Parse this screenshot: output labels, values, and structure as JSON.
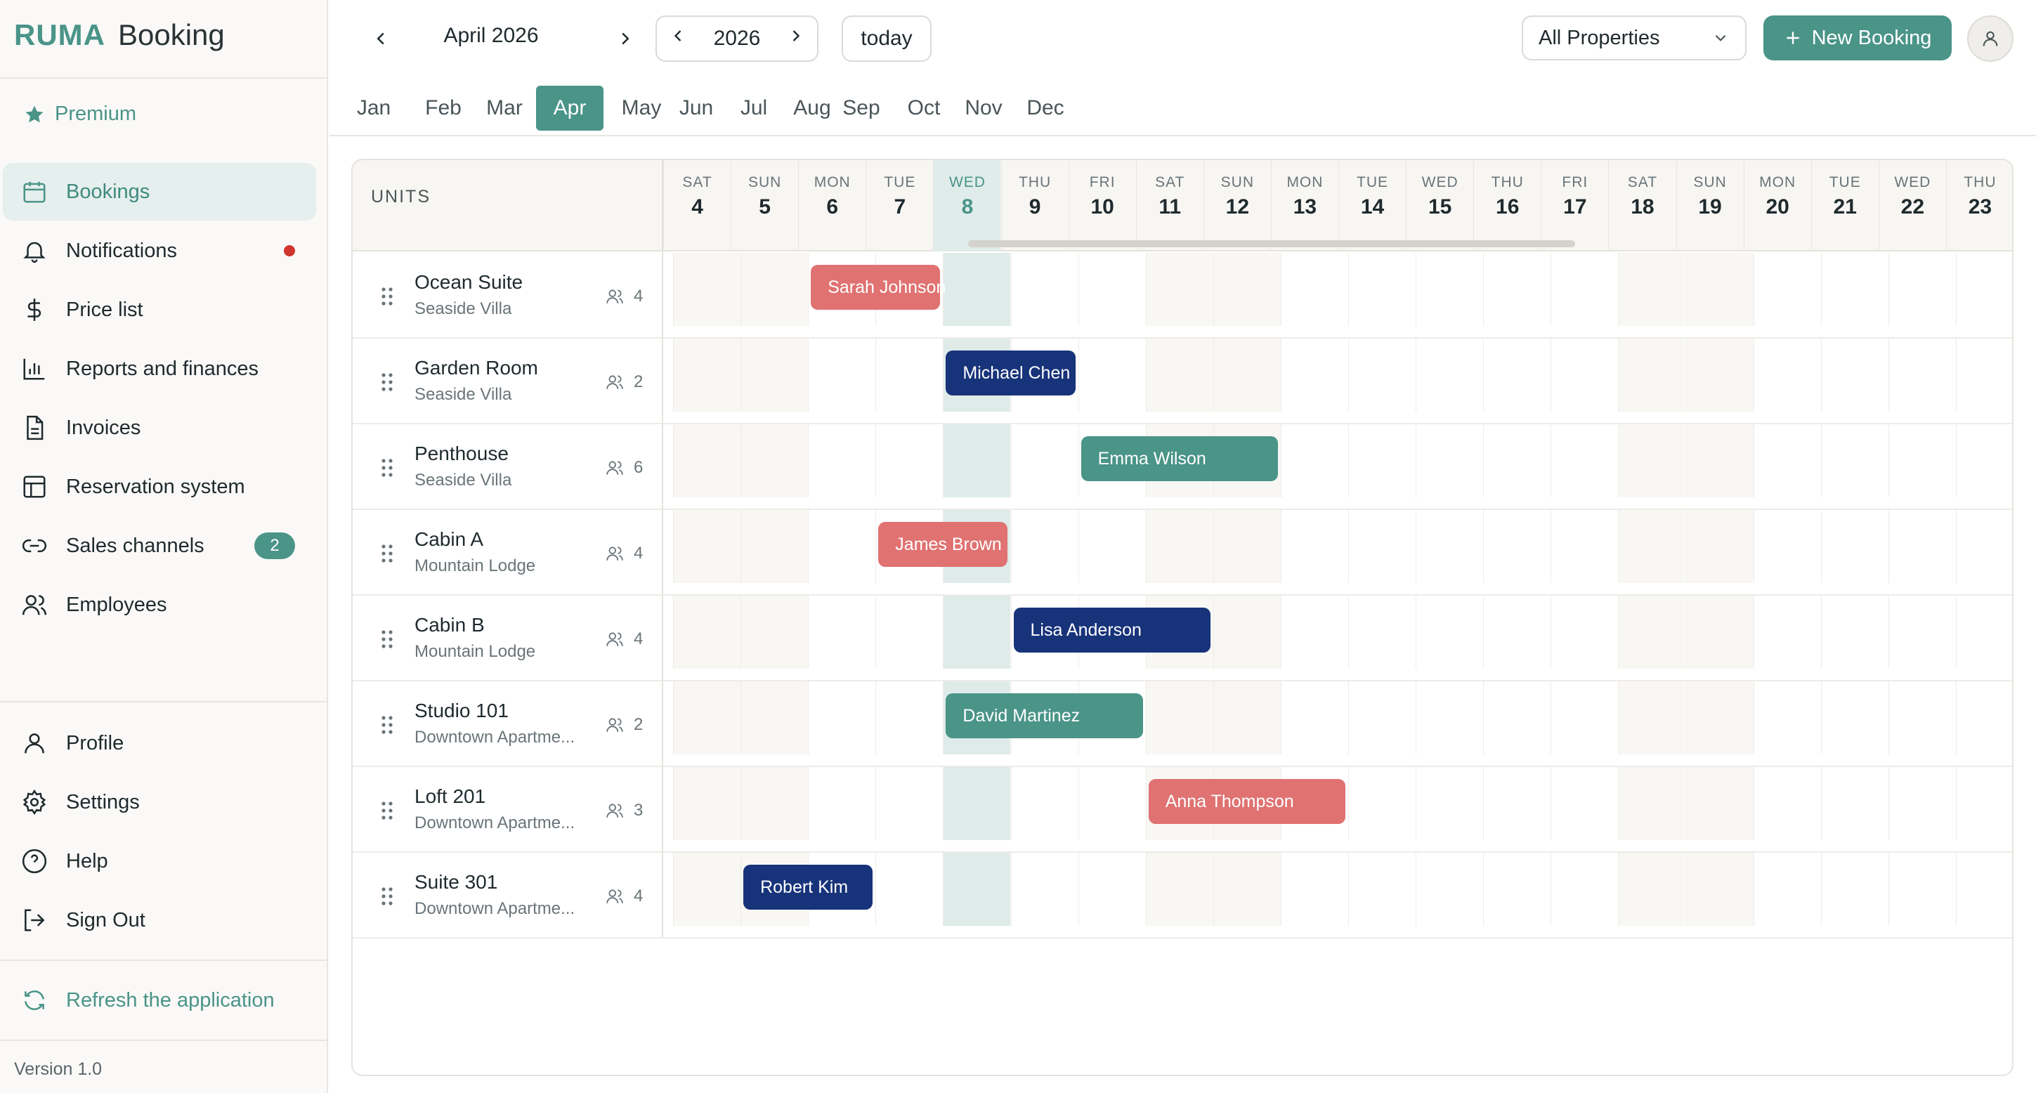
{
  "sidebar": {
    "logo_brand": "RUMA",
    "logo_word": "Booking",
    "premium": "Premium",
    "items": [
      {
        "label": "Bookings",
        "icon": "calendar-icon"
      },
      {
        "label": "Notifications",
        "icon": "bell-icon"
      },
      {
        "label": "Price list",
        "icon": "dollar-icon"
      },
      {
        "label": "Reports and finances",
        "icon": "bar-chart-icon"
      },
      {
        "label": "Invoices",
        "icon": "document-icon"
      },
      {
        "label": "Reservation system",
        "icon": "layout-icon"
      },
      {
        "label": "Sales channels",
        "icon": "link-icon",
        "badge": "2"
      },
      {
        "label": "Employees",
        "icon": "users-icon"
      }
    ],
    "bottom_items": [
      {
        "label": "Profile",
        "icon": "user-icon"
      },
      {
        "label": "Settings",
        "icon": "gear-icon"
      },
      {
        "label": "Help",
        "icon": "help-icon"
      },
      {
        "label": "Sign Out",
        "icon": "sign-out-icon"
      }
    ],
    "refresh": "Refresh the application",
    "version": "Version 1.0"
  },
  "topbar": {
    "month_title": "April 2026",
    "year": "2026",
    "today": "today",
    "property_select": "All Properties",
    "new_booking": "New Booking"
  },
  "months": [
    "Jan",
    "Feb",
    "Mar",
    "Apr",
    "May",
    "Jun",
    "Jul",
    "Aug",
    "Sep",
    "Oct",
    "Nov",
    "Dec"
  ],
  "active_month": "Apr",
  "calendar": {
    "units_header": "UNITS",
    "days": [
      {
        "name": "SAT",
        "num": "4"
      },
      {
        "name": "SUN",
        "num": "5"
      },
      {
        "name": "MON",
        "num": "6"
      },
      {
        "name": "TUE",
        "num": "7"
      },
      {
        "name": "WED",
        "num": "8"
      },
      {
        "name": "THU",
        "num": "9"
      },
      {
        "name": "FRI",
        "num": "10"
      },
      {
        "name": "SAT",
        "num": "11"
      },
      {
        "name": "SUN",
        "num": "12"
      },
      {
        "name": "MON",
        "num": "13"
      },
      {
        "name": "TUE",
        "num": "14"
      },
      {
        "name": "WED",
        "num": "15"
      },
      {
        "name": "THU",
        "num": "16"
      },
      {
        "name": "FRI",
        "num": "17"
      },
      {
        "name": "SAT",
        "num": "18"
      },
      {
        "name": "SUN",
        "num": "19"
      },
      {
        "name": "MON",
        "num": "20"
      },
      {
        "name": "TUE",
        "num": "21"
      },
      {
        "name": "WED",
        "num": "22"
      },
      {
        "name": "THU",
        "num": "23"
      }
    ],
    "today_num": "8",
    "units": [
      {
        "name": "Ocean Suite",
        "property": "Seaside Villa",
        "capacity": "4"
      },
      {
        "name": "Garden Room",
        "property": "Seaside Villa",
        "capacity": "2"
      },
      {
        "name": "Penthouse",
        "property": "Seaside Villa",
        "capacity": "6"
      },
      {
        "name": "Cabin A",
        "property": "Mountain Lodge",
        "capacity": "4"
      },
      {
        "name": "Cabin B",
        "property": "Mountain Lodge",
        "capacity": "4"
      },
      {
        "name": "Studio 101",
        "property": "Downtown Apartme...",
        "capacity": "2"
      },
      {
        "name": "Loft 201",
        "property": "Downtown Apartme...",
        "capacity": "3"
      },
      {
        "name": "Suite 301",
        "property": "Downtown Apartme...",
        "capacity": "4"
      }
    ],
    "bookings": [
      {
        "unit": 0,
        "guest": "Sarah Johnson",
        "start_day": "6",
        "end_day": "8",
        "color": "#e07272"
      },
      {
        "unit": 1,
        "guest": "Michael Chen",
        "start_day": "8",
        "end_day": "10",
        "color": "#17337a"
      },
      {
        "unit": 2,
        "guest": "Emma Wilson",
        "start_day": "10",
        "end_day": "13",
        "color": "#4a9488"
      },
      {
        "unit": 3,
        "guest": "James Brown",
        "start_day": "7",
        "end_day": "9",
        "color": "#e07272"
      },
      {
        "unit": 4,
        "guest": "Lisa Anderson",
        "start_day": "9",
        "end_day": "12",
        "color": "#17337a"
      },
      {
        "unit": 5,
        "guest": "David Martinez",
        "start_day": "8",
        "end_day": "11",
        "color": "#4a9488"
      },
      {
        "unit": 6,
        "guest": "Anna Thompson",
        "start_day": "11",
        "end_day": "14",
        "color": "#e07272"
      },
      {
        "unit": 7,
        "guest": "Robert Kim",
        "start_day": "5",
        "end_day": "7",
        "color": "#17337a"
      }
    ]
  },
  "colors": {
    "accent": "#4a9488",
    "notification_dot": "#d0362e"
  }
}
